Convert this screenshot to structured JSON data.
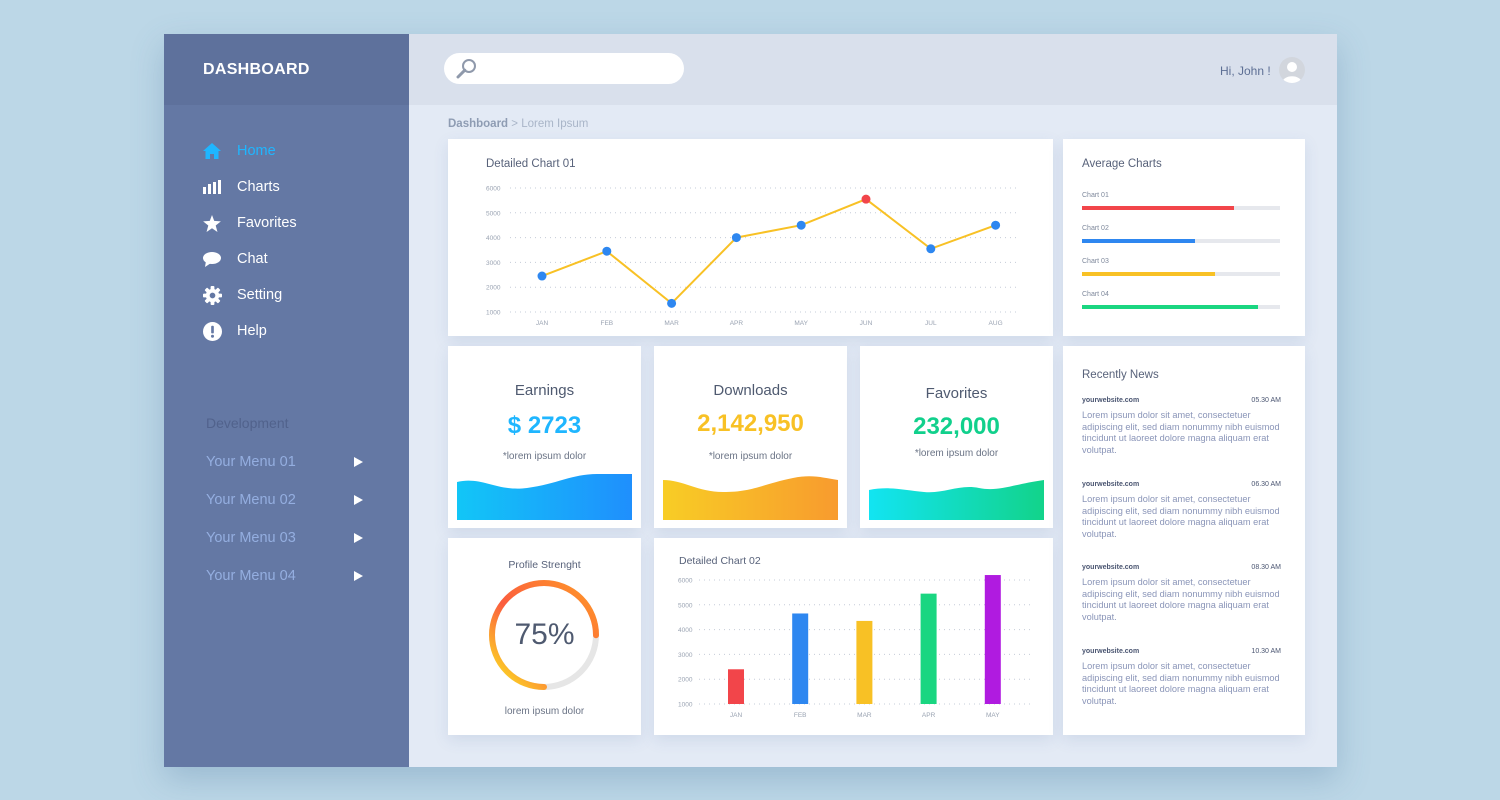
{
  "brand": {
    "title": "DASHBOARD"
  },
  "sidebar": {
    "items": [
      {
        "label": "Home",
        "icon": "home-icon",
        "active": true
      },
      {
        "label": "Charts",
        "icon": "bars-icon",
        "active": false
      },
      {
        "label": "Favorites",
        "icon": "star-icon",
        "active": false
      },
      {
        "label": "Chat",
        "icon": "chat-icon",
        "active": false
      },
      {
        "label": "Setting",
        "icon": "gear-icon",
        "active": false
      },
      {
        "label": "Help",
        "icon": "exclamation-icon",
        "active": false
      }
    ],
    "section_title": "Development",
    "menus": [
      {
        "label": "Your Menu 01"
      },
      {
        "label": "Your Menu 02"
      },
      {
        "label": "Your Menu 03"
      },
      {
        "label": "Your Menu 04"
      }
    ]
  },
  "header": {
    "search_placeholder": "",
    "greeting": "Hi, John !"
  },
  "breadcrumb": {
    "root": "Dashboard",
    "separator": ">",
    "current": "Lorem Ipsum"
  },
  "chart1": {
    "title": "Detailed Chart 01"
  },
  "chart2": {
    "title": "Detailed Chart 02"
  },
  "average": {
    "title": "Average Charts",
    "bars": [
      {
        "label": "Chart 01",
        "value": 0.77,
        "color": "#f2454a"
      },
      {
        "label": "Chart 02",
        "value": 0.57,
        "color": "#2e87f0"
      },
      {
        "label": "Chart 03",
        "value": 0.67,
        "color": "#f8c125"
      },
      {
        "label": "Chart 04",
        "value": 0.89,
        "color": "#1ad681"
      }
    ]
  },
  "stats": {
    "earnings": {
      "label": "Earnings",
      "value": "$ 2723",
      "sub": "*lorem ipsum dolor",
      "color": "#1fb6ff"
    },
    "downloads": {
      "label": "Downloads",
      "value": "2,142,950",
      "sub": "*lorem ipsum dolor",
      "color": "#f8c125"
    },
    "favorites": {
      "label": "Favorites",
      "value": "232,000",
      "sub": "*lorem ipsum dolor",
      "color": "#11d08c"
    }
  },
  "profile": {
    "title": "Profile Strenght",
    "percent_label": "75%",
    "value": 0.75,
    "caption": "lorem ipsum dolor"
  },
  "news": {
    "title": "Recently News",
    "items": [
      {
        "site": "yourwebsite.com",
        "time": "05.30 AM",
        "text": "Lorem ipsum dolor sit amet, consectetuer adipiscing elit, sed diam nonummy nibh euismod tincidunt ut laoreet dolore magna aliquam erat volutpat."
      },
      {
        "site": "yourwebsite.com",
        "time": "06.30 AM",
        "text": "Lorem ipsum dolor sit amet, consectetuer adipiscing elit, sed diam nonummy nibh euismod tincidunt ut laoreet dolore magna aliquam erat volutpat."
      },
      {
        "site": "yourwebsite.com",
        "time": "08.30 AM",
        "text": "Lorem ipsum dolor sit amet, consectetuer adipiscing elit, sed diam nonummy nibh euismod tincidunt ut laoreet dolore magna aliquam erat volutpat."
      },
      {
        "site": "yourwebsite.com",
        "time": "10.30 AM",
        "text": "Lorem ipsum dolor sit amet, consectetuer adipiscing elit, sed diam nonummy nibh euismod tincidunt ut laoreet dolore magna aliquam erat volutpat."
      }
    ]
  },
  "chart_data": [
    {
      "type": "line",
      "title": "Detailed Chart 01",
      "categories": [
        "JAN",
        "FEB",
        "MAR",
        "APR",
        "MAY",
        "JUN",
        "JUL",
        "AUG"
      ],
      "yticks": [
        "1000",
        "2000",
        "3000",
        "4000",
        "5000",
        "6000"
      ],
      "ylim": [
        1000,
        6000
      ],
      "series": [
        {
          "values": [
            2450,
            3450,
            1350,
            4000,
            4500,
            5550,
            3550,
            4500
          ]
        }
      ],
      "highlight_index": 5,
      "line_color": "#f8c125",
      "point_color": "#2e87f0",
      "highlight_color": "#f2454a",
      "grid": true
    },
    {
      "type": "bar",
      "title": "Detailed Chart 02",
      "categories": [
        "JAN",
        "FEB",
        "MAR",
        "APR",
        "MAY"
      ],
      "yticks": [
        "1000",
        "2000",
        "3000",
        "4000",
        "5000",
        "6000"
      ],
      "ylim": [
        1000,
        6000
      ],
      "series": [
        {
          "values": [
            2400,
            4650,
            4350,
            5450,
            6200
          ]
        }
      ],
      "colors": [
        "#f2454a",
        "#2e87f0",
        "#f8c125",
        "#1ad681",
        "#b01be0"
      ],
      "grid": true
    }
  ]
}
